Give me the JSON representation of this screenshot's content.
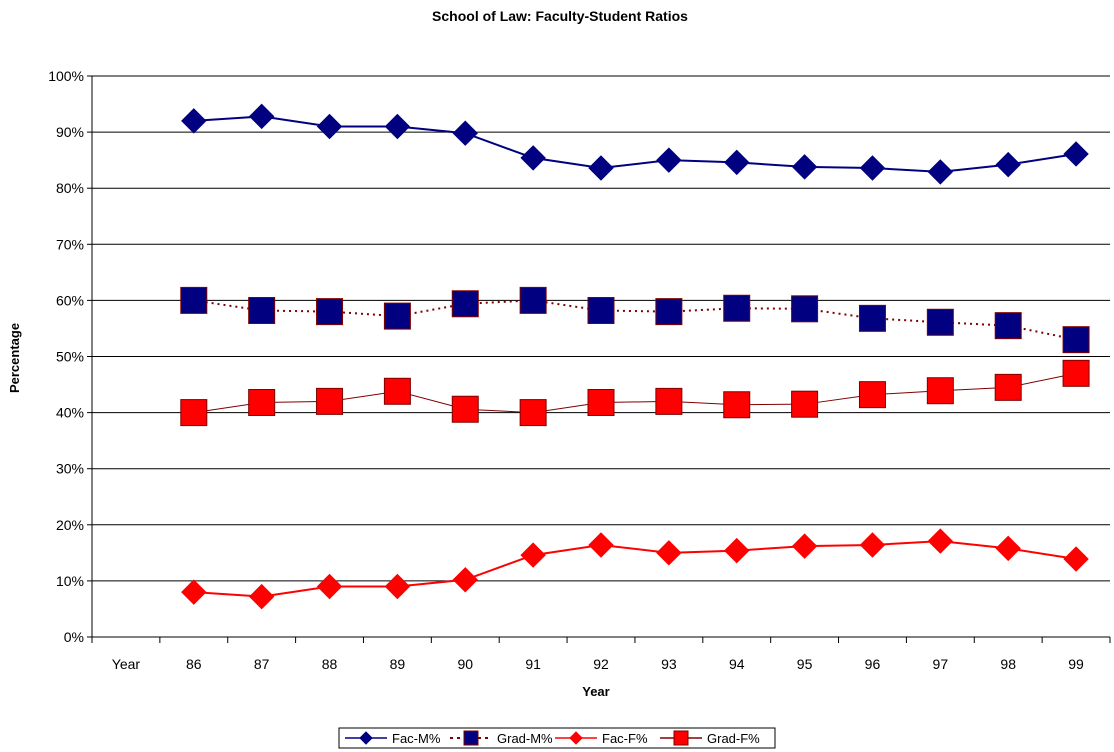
{
  "chart_data": {
    "type": "line",
    "title": "School of Law: Faculty-Student Ratios",
    "xlabel": "Year",
    "ylabel": "Percentage",
    "categories": [
      "Year",
      "86",
      "87",
      "88",
      "89",
      "90",
      "91",
      "92",
      "93",
      "94",
      "95",
      "96",
      "97",
      "98",
      "99"
    ],
    "y_ticks": [
      "0%",
      "10%",
      "20%",
      "30%",
      "40%",
      "50%",
      "60%",
      "70%",
      "80%",
      "90%",
      "100%"
    ],
    "ylim": [
      0,
      100
    ],
    "grid": true,
    "legend_position": "bottom",
    "series": [
      {
        "name": "Fac-M%",
        "color": "#000080",
        "marker": "diamond",
        "line": "solid",
        "values": [
          null,
          92,
          92.8,
          91,
          91,
          89.8,
          85.4,
          83.6,
          85,
          84.6,
          83.8,
          83.6,
          82.9,
          84.2,
          86.1
        ]
      },
      {
        "name": "Grad-M%",
        "color": "#000080",
        "marker": "square",
        "line": "dotted",
        "line_color": "#800000",
        "values": [
          null,
          60,
          58.2,
          58,
          57.2,
          59.4,
          60,
          58.2,
          58,
          58.6,
          58.5,
          56.8,
          56.1,
          55.5,
          53
        ]
      },
      {
        "name": "Fac-F%",
        "color": "#ff0000",
        "marker": "diamond",
        "line": "solid",
        "values": [
          null,
          8,
          7.2,
          9,
          9,
          10.2,
          14.6,
          16.4,
          15,
          15.4,
          16.2,
          16.4,
          17.1,
          15.8,
          13.9
        ]
      },
      {
        "name": "Grad-F%",
        "color": "#ff0000",
        "marker": "square",
        "line": "solid",
        "line_color": "#800000",
        "values": [
          null,
          40,
          41.8,
          42,
          43.8,
          40.6,
          40,
          41.8,
          42,
          41.4,
          41.5,
          43.2,
          43.9,
          44.5,
          47
        ]
      }
    ]
  }
}
